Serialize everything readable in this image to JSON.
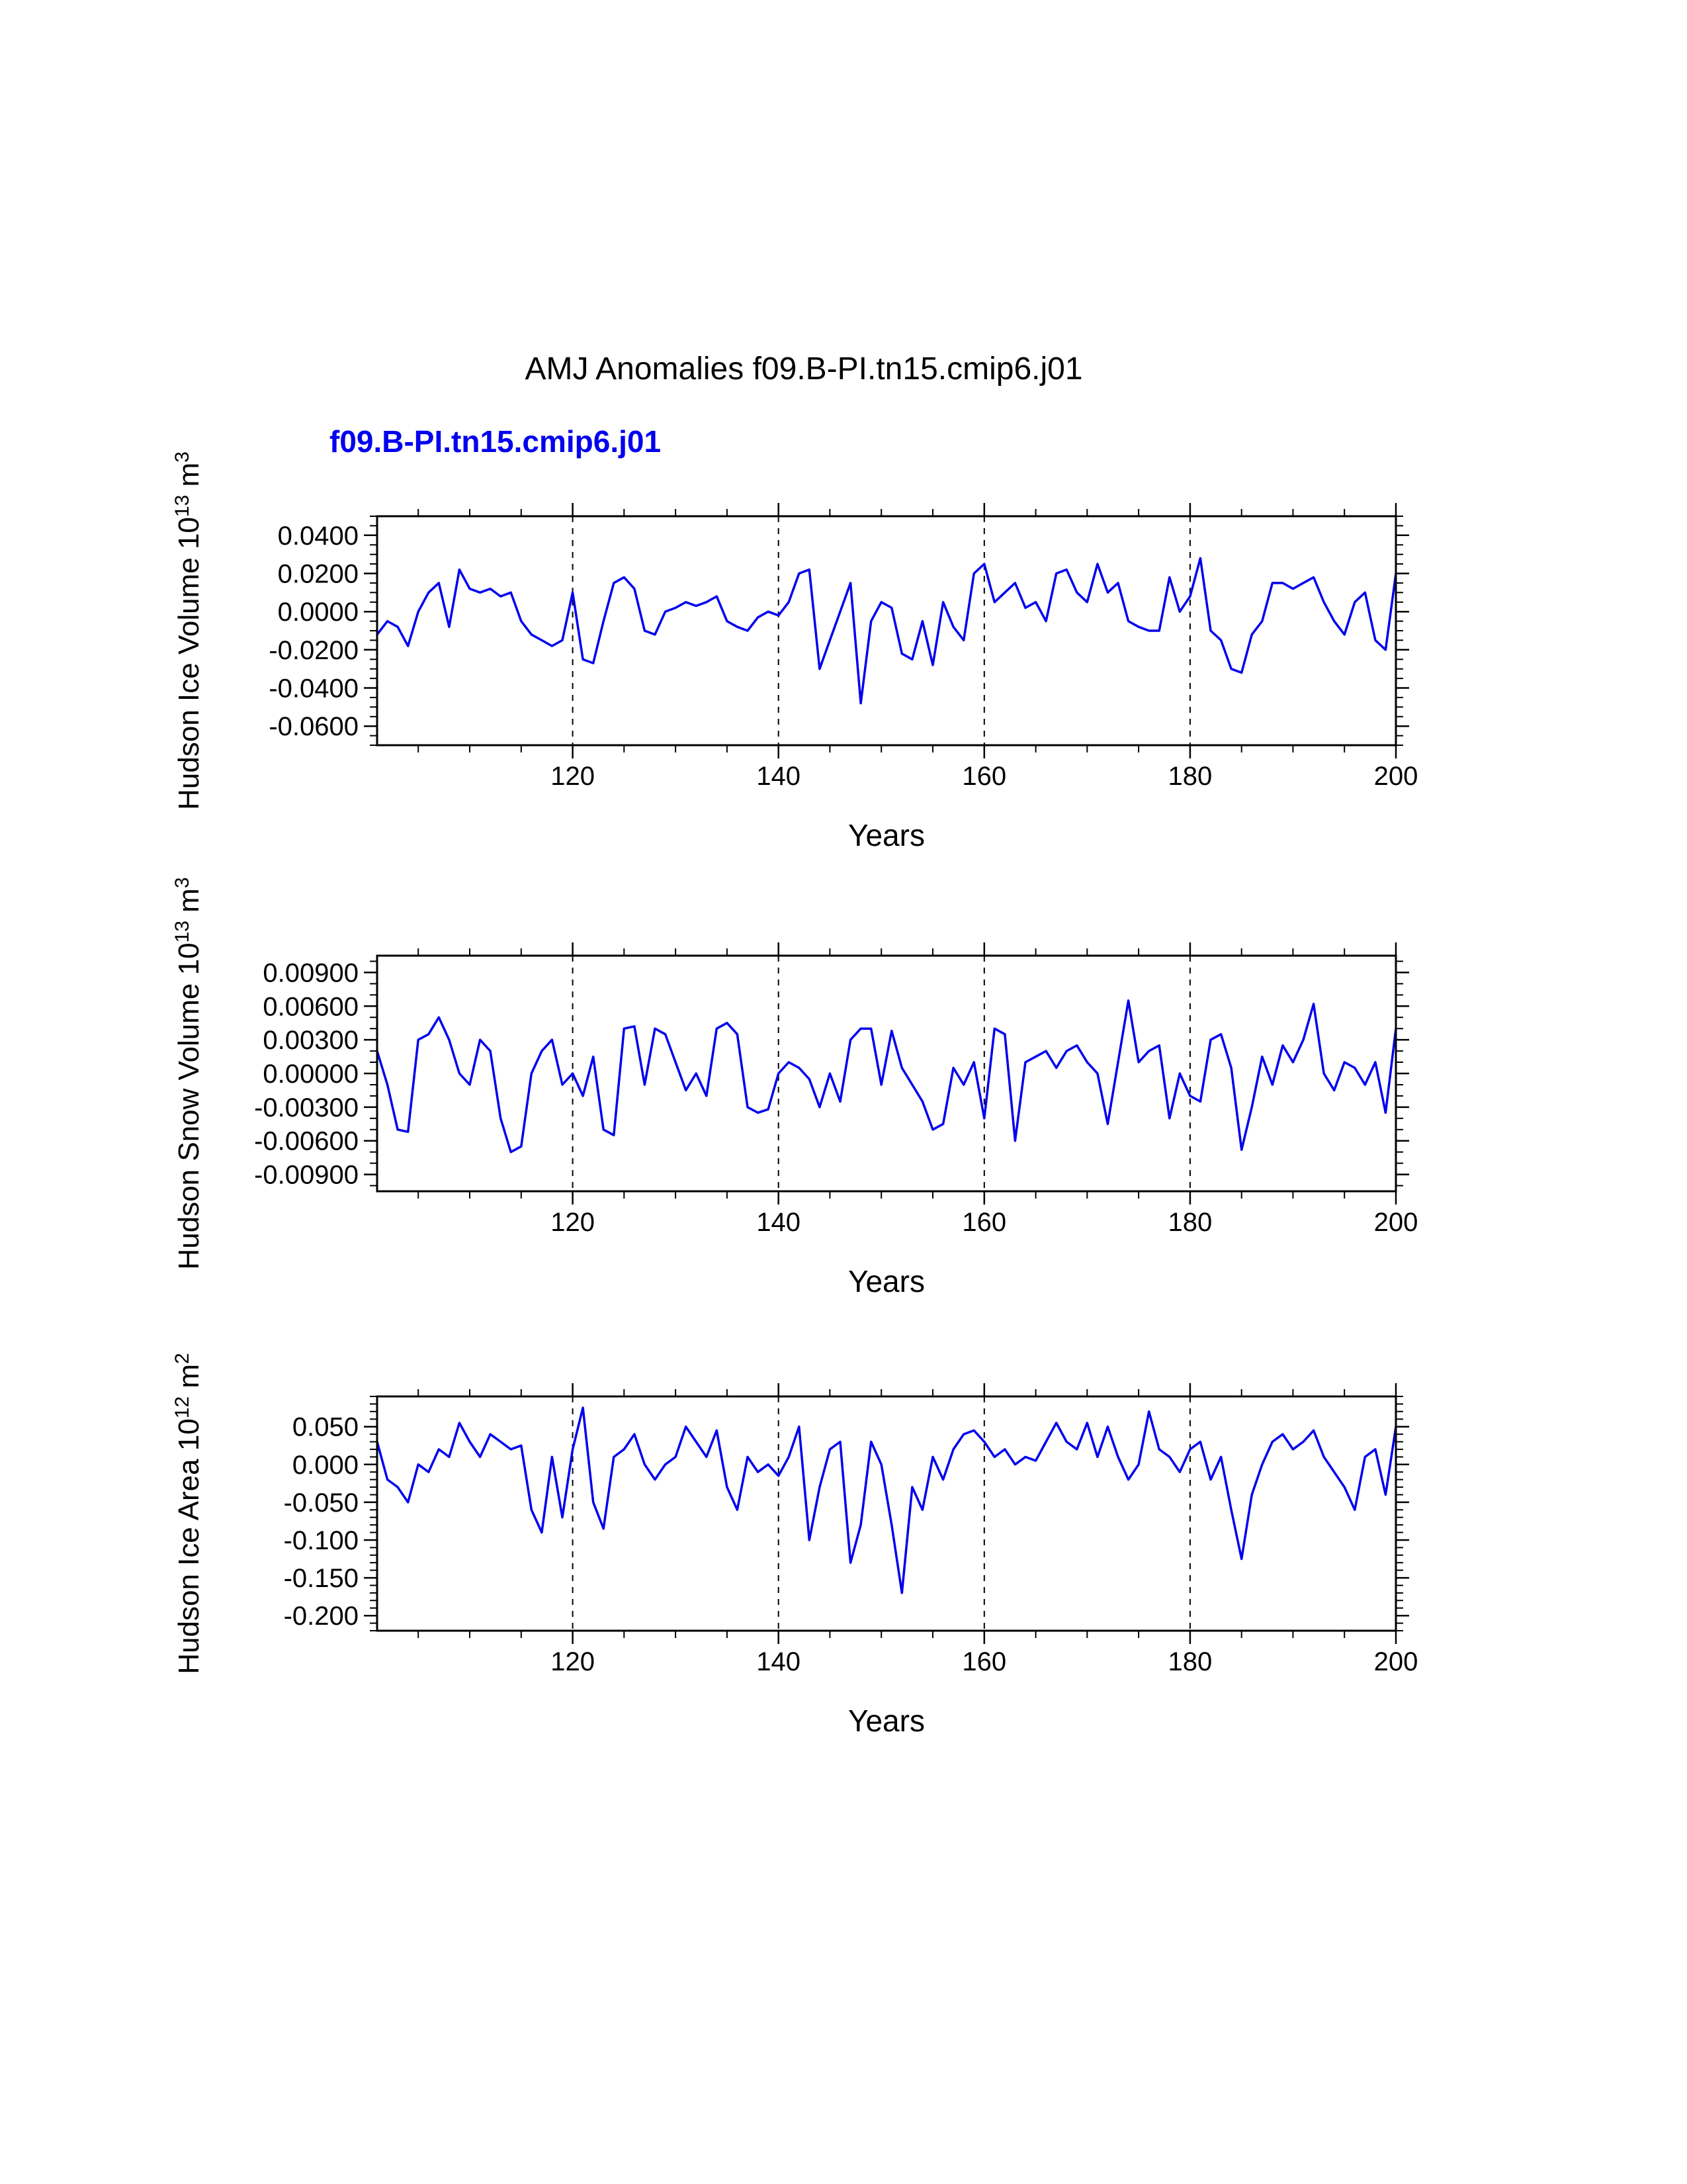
{
  "figure": {
    "title": "AMJ Anomalies f09.B-PI.tn15.cmip6.j01",
    "legend_label": "f09.B-PI.tn15.cmip6.j01",
    "line_color": "#0000ee",
    "axis_color": "#000000",
    "background": "#ffffff"
  },
  "chart_data": [
    {
      "type": "line",
      "id": "hudson-ice-volume",
      "series_name": "f09.B-PI.tn15.cmip6.j01",
      "ylabel": "Hudson Ice Volume 10^13 m^3",
      "xlabel": "Years",
      "xlim": [
        101,
        200
      ],
      "x_start": 101,
      "x_step": 1,
      "ylim": [
        -0.07,
        0.05
      ],
      "xticks": {
        "values": [
          120,
          140,
          160,
          180,
          200
        ],
        "labels": [
          "120",
          "140",
          "160",
          "180",
          "200"
        ]
      },
      "x_minor_step": 5,
      "yticks": {
        "values": [
          0.04,
          0.02,
          0,
          -0.02,
          -0.04,
          -0.06
        ],
        "labels": [
          "0.0400",
          "0.0200",
          "0.0000",
          "-0.0200",
          "-0.0400",
          "-0.0600"
        ]
      },
      "y_minor_step": 0.005,
      "grid_x_dashed": [
        120,
        140,
        160,
        180
      ],
      "values": [
        -0.012,
        -0.005,
        -0.008,
        -0.018,
        0.0,
        0.01,
        0.015,
        -0.008,
        0.022,
        0.012,
        0.01,
        0.012,
        0.008,
        0.01,
        -0.005,
        -0.012,
        -0.015,
        -0.018,
        -0.015,
        0.01,
        -0.025,
        -0.027,
        -0.005,
        0.015,
        0.018,
        0.012,
        -0.01,
        -0.012,
        0.0,
        0.002,
        0.005,
        0.003,
        0.005,
        0.008,
        -0.005,
        -0.008,
        -0.01,
        -0.003,
        0.0,
        -0.002,
        0.005,
        0.02,
        0.022,
        -0.03,
        -0.015,
        0.0,
        0.015,
        -0.048,
        -0.005,
        0.005,
        0.002,
        -0.022,
        -0.025,
        -0.005,
        -0.028,
        0.005,
        -0.008,
        -0.015,
        0.02,
        0.025,
        0.005,
        0.01,
        0.015,
        0.002,
        0.005,
        -0.005,
        0.02,
        0.022,
        0.01,
        0.005,
        0.025,
        0.01,
        0.015,
        -0.005,
        -0.008,
        -0.01,
        -0.01,
        0.018,
        0.0,
        0.008,
        0.028,
        -0.01,
        -0.015,
        -0.03,
        -0.032,
        -0.012,
        -0.005,
        0.015,
        0.015,
        0.012,
        0.015,
        0.018,
        0.005,
        -0.005,
        -0.012,
        0.005,
        0.01,
        -0.015,
        -0.02,
        0.02
      ]
    },
    {
      "type": "line",
      "id": "hudson-snow-volume",
      "series_name": "f09.B-PI.tn15.cmip6.j01",
      "ylabel": "Hudson Snow Volume 10^13 m^3",
      "xlabel": "Years",
      "xlim": [
        101,
        200
      ],
      "x_start": 101,
      "x_step": 1,
      "ylim": [
        -0.0105,
        0.0105
      ],
      "xticks": {
        "values": [
          120,
          140,
          160,
          180,
          200
        ],
        "labels": [
          "120",
          "140",
          "160",
          "180",
          "200"
        ]
      },
      "x_minor_step": 5,
      "yticks": {
        "values": [
          0.009,
          0.006,
          0.003,
          0,
          -0.003,
          -0.006,
          -0.009
        ],
        "labels": [
          "0.00900",
          "0.00600",
          "0.00300",
          "0.00000",
          "-0.00300",
          "-0.00600",
          "-0.00900"
        ]
      },
      "y_minor_step": 0.001,
      "grid_x_dashed": [
        120,
        140,
        160,
        180
      ],
      "values": [
        0.002,
        -0.001,
        -0.005,
        -0.0052,
        0.003,
        0.0035,
        0.005,
        0.003,
        0.0,
        -0.001,
        0.003,
        0.002,
        -0.004,
        -0.007,
        -0.0065,
        0.0,
        0.002,
        0.003,
        -0.001,
        0.0,
        -0.002,
        0.0015,
        -0.005,
        -0.0055,
        0.004,
        0.0042,
        -0.001,
        0.004,
        0.0035,
        0.001,
        -0.0015,
        0.0,
        -0.002,
        0.004,
        0.0045,
        0.0035,
        -0.003,
        -0.0035,
        -0.0032,
        0.0,
        0.001,
        0.0005,
        -0.0005,
        -0.003,
        0.0,
        -0.0025,
        0.003,
        0.004,
        0.004,
        -0.001,
        0.0038,
        0.0005,
        -0.001,
        -0.0025,
        -0.005,
        -0.0045,
        0.0005,
        -0.001,
        0.001,
        -0.004,
        0.004,
        0.0035,
        -0.006,
        0.001,
        0.0015,
        0.002,
        0.0005,
        0.002,
        0.0025,
        0.001,
        0.0,
        -0.0045,
        0.001,
        0.0065,
        0.001,
        0.002,
        0.0025,
        -0.004,
        0.0,
        -0.002,
        -0.0025,
        0.003,
        0.0035,
        0.0005,
        -0.0068,
        -0.003,
        0.0015,
        -0.001,
        0.0025,
        0.001,
        0.003,
        0.0062,
        0.0,
        -0.0015,
        0.001,
        0.0005,
        -0.001,
        0.001,
        -0.0035,
        0.004
      ]
    },
    {
      "type": "line",
      "id": "hudson-ice-area",
      "series_name": "f09.B-PI.tn15.cmip6.j01",
      "ylabel": "Hudson Ice Area 10^12 m^2",
      "xlabel": "Years",
      "xlim": [
        101,
        200
      ],
      "x_start": 101,
      "x_step": 1,
      "ylim": [
        -0.22,
        0.09
      ],
      "xticks": {
        "values": [
          120,
          140,
          160,
          180,
          200
        ],
        "labels": [
          "120",
          "140",
          "160",
          "180",
          "200"
        ]
      },
      "x_minor_step": 5,
      "yticks": {
        "values": [
          0.05,
          0,
          -0.05,
          -0.1,
          -0.15,
          -0.2
        ],
        "labels": [
          "0.050",
          "0.000",
          "-0.050",
          "-0.100",
          "-0.150",
          "-0.200"
        ]
      },
      "y_minor_step": 0.01,
      "grid_x_dashed": [
        120,
        140,
        160,
        180
      ],
      "values": [
        0.03,
        -0.02,
        -0.03,
        -0.05,
        0.0,
        -0.01,
        0.02,
        0.01,
        0.055,
        0.03,
        0.01,
        0.04,
        0.03,
        0.02,
        0.025,
        -0.06,
        -0.09,
        0.01,
        -0.07,
        0.02,
        0.075,
        -0.05,
        -0.085,
        0.01,
        0.02,
        0.04,
        0.0,
        -0.02,
        0.0,
        0.01,
        0.05,
        0.03,
        0.01,
        0.045,
        -0.03,
        -0.06,
        0.01,
        -0.01,
        0.0,
        -0.015,
        0.01,
        0.05,
        -0.1,
        -0.03,
        0.02,
        0.03,
        -0.13,
        -0.08,
        0.03,
        0.0,
        -0.08,
        -0.17,
        -0.03,
        -0.06,
        0.01,
        -0.02,
        0.02,
        0.04,
        0.045,
        0.03,
        0.01,
        0.02,
        0.0,
        0.01,
        0.005,
        0.03,
        0.055,
        0.03,
        0.02,
        0.055,
        0.01,
        0.05,
        0.01,
        -0.02,
        0.0,
        0.07,
        0.02,
        0.01,
        -0.01,
        0.02,
        0.03,
        -0.02,
        0.01,
        -0.06,
        -0.125,
        -0.04,
        0.0,
        0.03,
        0.04,
        0.02,
        0.03,
        0.045,
        0.01,
        -0.01,
        -0.03,
        -0.06,
        0.01,
        0.02,
        -0.04,
        0.05
      ]
    }
  ]
}
